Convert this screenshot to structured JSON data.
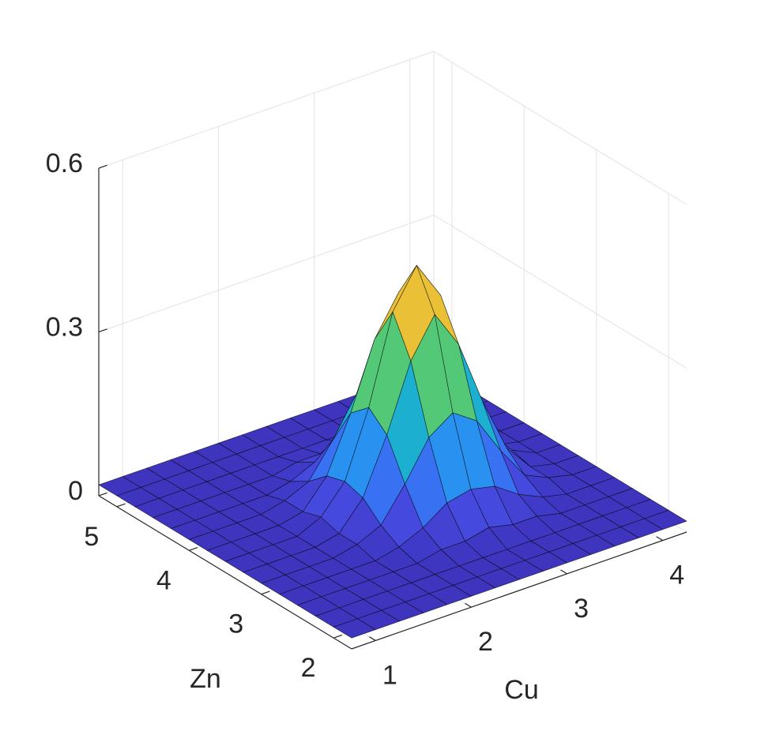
{
  "chart_data": {
    "type": "surface",
    "xlabel": "Cu",
    "ylabel": "Zn",
    "x": [
      0.75,
      1,
      1.25,
      1.5,
      1.75,
      2,
      2.25,
      2.5,
      2.75,
      3,
      3.25,
      3.5,
      3.75,
      4,
      4.25
    ],
    "y": [
      1.75,
      2,
      2.25,
      2.5,
      2.75,
      3,
      3.25,
      3.5,
      3.75,
      4,
      4.25,
      4.5,
      4.75,
      5,
      5.25
    ],
    "z": [
      [
        0.02,
        0.02,
        0.02,
        0.02,
        0.02,
        0.02,
        0.02,
        0.02,
        0.02,
        0.02,
        0.02,
        0.02,
        0.02,
        0.02,
        0.02
      ],
      [
        0.02,
        0.02,
        0.02,
        0.02,
        0.02,
        0.02,
        0.02,
        0.02,
        0.02,
        0.02,
        0.02,
        0.02,
        0.02,
        0.02,
        0.02
      ],
      [
        0.02,
        0.02,
        0.02,
        0.02,
        0.02,
        0.02,
        0.02,
        0.02,
        0.02,
        0.02,
        0.02,
        0.02,
        0.02,
        0.02,
        0.02
      ],
      [
        0.02,
        0.02,
        0.02,
        0.02,
        0.02,
        0.02,
        0.03,
        0.03,
        0.04,
        0.03,
        0.03,
        0.02,
        0.02,
        0.02,
        0.02
      ],
      [
        0.02,
        0.02,
        0.02,
        0.02,
        0.02,
        0.03,
        0.05,
        0.08,
        0.09,
        0.08,
        0.05,
        0.03,
        0.02,
        0.02,
        0.02
      ],
      [
        0.02,
        0.02,
        0.02,
        0.02,
        0.03,
        0.05,
        0.11,
        0.18,
        0.21,
        0.18,
        0.11,
        0.05,
        0.03,
        0.02,
        0.02
      ],
      [
        0.02,
        0.02,
        0.02,
        0.02,
        0.03,
        0.08,
        0.18,
        0.3,
        0.37,
        0.3,
        0.18,
        0.08,
        0.03,
        0.02,
        0.02
      ],
      [
        0.02,
        0.02,
        0.02,
        0.02,
        0.04,
        0.09,
        0.21,
        0.37,
        0.44,
        0.37,
        0.21,
        0.09,
        0.04,
        0.02,
        0.02
      ],
      [
        0.02,
        0.02,
        0.02,
        0.02,
        0.03,
        0.08,
        0.18,
        0.3,
        0.37,
        0.3,
        0.18,
        0.08,
        0.03,
        0.02,
        0.02
      ],
      [
        0.02,
        0.02,
        0.02,
        0.02,
        0.03,
        0.05,
        0.11,
        0.18,
        0.21,
        0.18,
        0.11,
        0.05,
        0.03,
        0.02,
        0.02
      ],
      [
        0.02,
        0.02,
        0.02,
        0.02,
        0.02,
        0.03,
        0.05,
        0.08,
        0.09,
        0.08,
        0.05,
        0.03,
        0.02,
        0.02,
        0.02
      ],
      [
        0.02,
        0.02,
        0.02,
        0.02,
        0.02,
        0.02,
        0.03,
        0.03,
        0.04,
        0.03,
        0.03,
        0.02,
        0.02,
        0.02,
        0.02
      ],
      [
        0.02,
        0.02,
        0.02,
        0.02,
        0.02,
        0.02,
        0.02,
        0.02,
        0.02,
        0.02,
        0.02,
        0.02,
        0.02,
        0.02,
        0.02
      ],
      [
        0.02,
        0.02,
        0.02,
        0.02,
        0.02,
        0.02,
        0.02,
        0.02,
        0.02,
        0.02,
        0.02,
        0.02,
        0.02,
        0.02,
        0.02
      ],
      [
        0.02,
        0.02,
        0.02,
        0.02,
        0.02,
        0.02,
        0.02,
        0.02,
        0.02,
        0.02,
        0.02,
        0.02,
        0.02,
        0.02,
        0.02
      ]
    ],
    "xlim": [
      0.75,
      4.25
    ],
    "ylim": [
      1.75,
      5.25
    ],
    "zlim": [
      0,
      0.6
    ],
    "xticks": [
      1,
      2,
      3,
      4
    ],
    "yticks": [
      2,
      3,
      4,
      5
    ],
    "zticks": [
      0,
      0.3,
      0.6
    ],
    "colormap": "parula",
    "edgecolor": "#000000",
    "grid": true
  }
}
